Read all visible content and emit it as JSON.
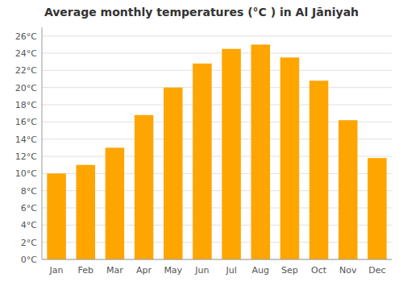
{
  "chart_data": {
    "type": "bar",
    "title": "Average monthly temperatures (°C ) in Al Jāniyah",
    "categories": [
      "Jan",
      "Feb",
      "Mar",
      "Apr",
      "May",
      "Jun",
      "Jul",
      "Aug",
      "Sep",
      "Oct",
      "Nov",
      "Dec"
    ],
    "values": [
      10.0,
      11.0,
      13.0,
      16.8,
      20.0,
      22.8,
      24.5,
      25.0,
      23.5,
      20.8,
      16.2,
      11.8
    ],
    "color": "#FFA500",
    "ylim": [
      0,
      27
    ],
    "yticks": [
      {
        "value": 0,
        "label": "0°C"
      },
      {
        "value": 2,
        "label": "2°C"
      },
      {
        "value": 4,
        "label": "4°C"
      },
      {
        "value": 6,
        "label": "6°C"
      },
      {
        "value": 8,
        "label": "8°C"
      },
      {
        "value": 10,
        "label": "10°C"
      },
      {
        "value": 12,
        "label": "12°C"
      },
      {
        "value": 14,
        "label": "14°C"
      },
      {
        "value": 16,
        "label": "16°C"
      },
      {
        "value": 18,
        "label": "18°C"
      },
      {
        "value": 20,
        "label": "20°C"
      },
      {
        "value": 22,
        "label": "22°C"
      },
      {
        "value": 24,
        "label": "24°C"
      },
      {
        "value": 26,
        "label": "26°C"
      }
    ],
    "grid": true
  }
}
